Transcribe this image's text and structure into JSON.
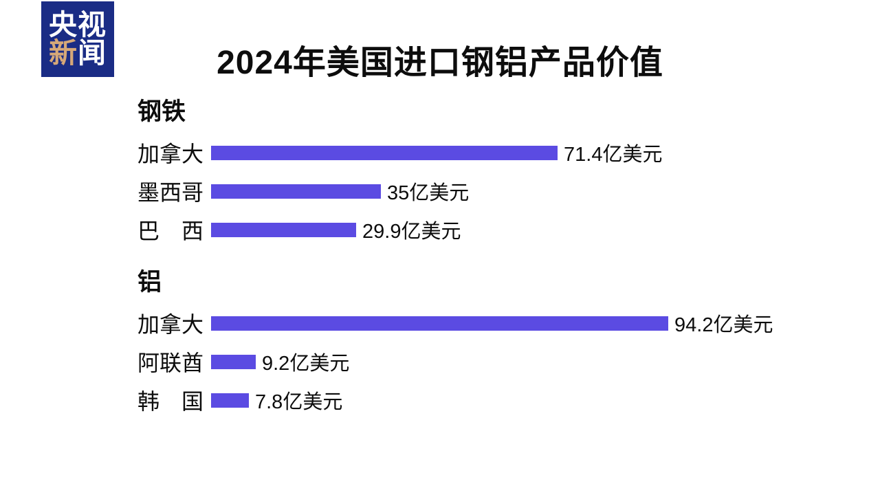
{
  "logo": {
    "line1": "央视",
    "line2_first": "新",
    "line2_rest": "闻",
    "bg_color": "#1a2c85",
    "accent_color": "#d6a878",
    "text_color": "#ffffff"
  },
  "title": "2024年美国进口钢铝产品价值",
  "chart_data": {
    "type": "bar",
    "orientation": "horizontal",
    "title": "2024年美国进口钢铝产品价值",
    "unit": "亿美元",
    "bar_color": "#5b4be2",
    "xlim": [
      0,
      100
    ],
    "grid": false,
    "legend": false,
    "sections": [
      {
        "label": "钢铁",
        "rows": [
          {
            "category": "加拿大",
            "value": 71.4,
            "value_label": "71.4亿美元"
          },
          {
            "category": "墨西哥",
            "value": 35,
            "value_label": "35亿美元"
          },
          {
            "category": "巴　西",
            "value": 29.9,
            "value_label": "29.9亿美元"
          }
        ]
      },
      {
        "label": "铝",
        "rows": [
          {
            "category": "加拿大",
            "value": 94.2,
            "value_label": "94.2亿美元"
          },
          {
            "category": "阿联酋",
            "value": 9.2,
            "value_label": "9.2亿美元"
          },
          {
            "category": "韩　国",
            "value": 7.8,
            "value_label": "7.8亿美元"
          }
        ]
      }
    ]
  }
}
